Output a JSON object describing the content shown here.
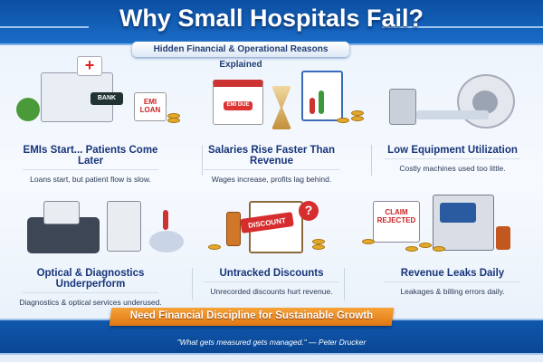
{
  "header": {
    "title": "Why Small Hospitals Fail?",
    "subtitle": "Hidden Financial & Operational Reasons Explained"
  },
  "cards": [
    {
      "title": "EMIs Start... Patients Come Later",
      "subtitle": "Loans start, but patient flow is slow.",
      "art_labels": [
        "BANK",
        "EMI LOAN"
      ]
    },
    {
      "title": "Salaries Rise Faster Than Revenue",
      "subtitle": "Wages increase, profits lag behind.",
      "art_labels": [
        "EMI DUE"
      ]
    },
    {
      "title": "Low Equipment Utilization",
      "subtitle": "Costly machines used too little."
    },
    {
      "title": "Optical & Diagnostics Underperform",
      "subtitle": "Diagnostics & optical services underused."
    },
    {
      "title": "Untracked Discounts",
      "subtitle": "Unrecorded discounts hurt revenue.",
      "art_labels": [
        "DISCOUNT",
        "?"
      ]
    },
    {
      "title": "Revenue Leaks Daily",
      "subtitle": "Leakages & billing errors daily.",
      "art_labels": [
        "CLAIM REJECTED"
      ]
    }
  ],
  "footer": {
    "banner": "Need Financial Discipline for Sustainable Growth",
    "quote": "\"What gets measured gets managed.\" — Peter Drucker"
  },
  "colors": {
    "header_blue": "#0b4fa3",
    "title_navy": "#17357a",
    "banner_orange": "#e8861c"
  }
}
